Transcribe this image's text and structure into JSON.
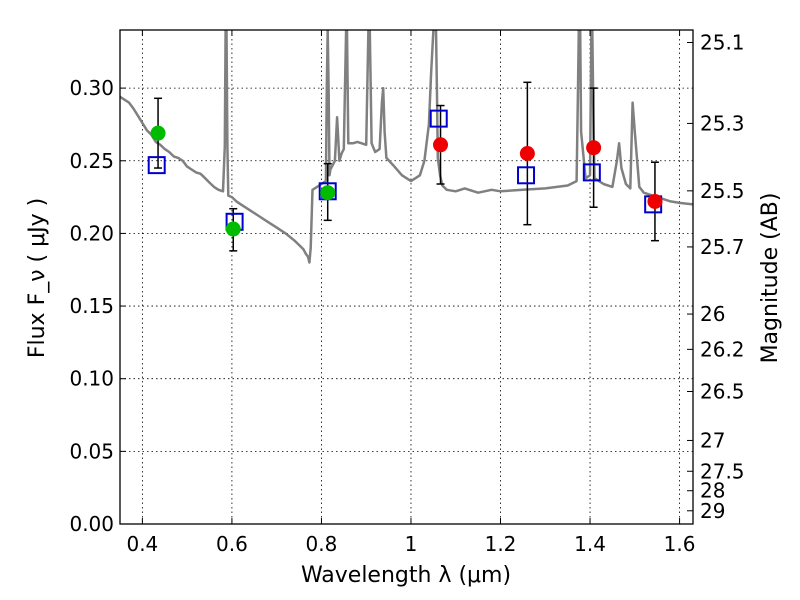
{
  "chart_data": {
    "type": "scatter",
    "xlabel": "Wavelength  λ (μm)",
    "ylabel": "Flux  F_ν  ( μJy )",
    "ylabel_right": "Magnitude (AB)",
    "xlim": [
      0.35,
      1.63
    ],
    "ylim": [
      0.0,
      0.34
    ],
    "grid": true,
    "x_ticks": [
      0.4,
      0.6,
      0.8,
      1.0,
      1.2,
      1.4,
      1.6
    ],
    "x_tick_labels": [
      "0.4",
      "0.6",
      "0.8",
      "1",
      "1.2",
      "1.4",
      "1.6"
    ],
    "y_ticks": [
      0.0,
      0.05,
      0.1,
      0.15,
      0.2,
      0.25,
      0.3
    ],
    "y_tick_labels": [
      "0.00",
      "0.05",
      "0.10",
      "0.15",
      "0.20",
      "0.25",
      "0.30"
    ],
    "right_ticks": [
      {
        "label": "25.1",
        "flux": 0.3314
      },
      {
        "label": "25.3",
        "flux": 0.2757
      },
      {
        "label": "25.5",
        "flux": 0.2293
      },
      {
        "label": "25.7",
        "flux": 0.1907
      },
      {
        "label": "26",
        "flux": 0.1445
      },
      {
        "label": "26.2",
        "flux": 0.1202
      },
      {
        "label": "26.5",
        "flux": 0.0912
      },
      {
        "label": "27",
        "flux": 0.0575
      },
      {
        "label": "27.5",
        "flux": 0.0363
      },
      {
        "label": "28",
        "flux": 0.0229
      },
      {
        "label": "29",
        "flux": 0.0091
      }
    ],
    "series": [
      {
        "kind": "template_spectrum",
        "color": "#808080",
        "x": [
          0.35,
          0.36,
          0.37,
          0.38,
          0.39,
          0.4,
          0.41,
          0.42,
          0.43,
          0.44,
          0.45,
          0.46,
          0.47,
          0.48,
          0.49,
          0.5,
          0.51,
          0.52,
          0.53,
          0.54,
          0.55,
          0.56,
          0.57,
          0.58,
          0.584,
          0.586,
          0.588,
          0.59,
          0.592,
          0.6,
          0.61,
          0.62,
          0.64,
          0.66,
          0.68,
          0.7,
          0.72,
          0.74,
          0.75,
          0.76,
          0.765,
          0.77,
          0.773,
          0.776,
          0.78,
          0.79,
          0.8,
          0.81,
          0.812,
          0.814,
          0.816,
          0.818,
          0.82,
          0.83,
          0.835,
          0.84,
          0.845,
          0.85,
          0.855,
          0.857,
          0.86,
          0.87,
          0.88,
          0.89,
          0.9,
          0.905,
          0.908,
          0.912,
          0.92,
          0.93,
          0.935,
          0.938,
          0.941,
          0.945,
          0.96,
          0.98,
          1.0,
          1.02,
          1.03,
          1.04,
          1.045,
          1.05,
          1.052,
          1.054,
          1.056,
          1.058,
          1.06,
          1.065,
          1.07,
          1.08,
          1.1,
          1.12,
          1.15,
          1.18,
          1.2,
          1.25,
          1.3,
          1.35,
          1.37,
          1.373,
          1.375,
          1.378,
          1.38,
          1.39,
          1.4,
          1.403,
          1.405,
          1.408,
          1.41,
          1.43,
          1.45,
          1.46,
          1.465,
          1.47,
          1.48,
          1.49,
          1.495,
          1.5,
          1.51,
          1.52,
          1.55,
          1.58,
          1.6,
          1.63
        ],
        "y": [
          0.294,
          0.292,
          0.29,
          0.286,
          0.281,
          0.276,
          0.271,
          0.268,
          0.263,
          0.261,
          0.258,
          0.256,
          0.253,
          0.252,
          0.25,
          0.246,
          0.244,
          0.242,
          0.241,
          0.238,
          0.235,
          0.232,
          0.23,
          0.229,
          0.26,
          0.34,
          0.34,
          0.26,
          0.226,
          0.225,
          0.222,
          0.22,
          0.216,
          0.212,
          0.208,
          0.204,
          0.2,
          0.195,
          0.192,
          0.189,
          0.186,
          0.184,
          0.18,
          0.19,
          0.23,
          0.232,
          0.234,
          0.236,
          0.3,
          0.34,
          0.3,
          0.24,
          0.244,
          0.25,
          0.28,
          0.25,
          0.255,
          0.258,
          0.34,
          0.34,
          0.262,
          0.262,
          0.263,
          0.262,
          0.261,
          0.34,
          0.34,
          0.262,
          0.256,
          0.258,
          0.29,
          0.3,
          0.27,
          0.252,
          0.247,
          0.24,
          0.236,
          0.24,
          0.25,
          0.275,
          0.31,
          0.34,
          0.34,
          0.34,
          0.34,
          0.3,
          0.252,
          0.24,
          0.233,
          0.23,
          0.229,
          0.231,
          0.228,
          0.23,
          0.229,
          0.23,
          0.231,
          0.233,
          0.236,
          0.3,
          0.34,
          0.34,
          0.27,
          0.238,
          0.24,
          0.34,
          0.34,
          0.27,
          0.238,
          0.234,
          0.232,
          0.25,
          0.262,
          0.245,
          0.234,
          0.231,
          0.29,
          0.27,
          0.232,
          0.228,
          0.225,
          0.222,
          0.221,
          0.22
        ]
      },
      {
        "kind": "model_fluxes",
        "marker": "open-square",
        "color": "#0000cc",
        "x": [
          0.432,
          0.606,
          0.814,
          1.062,
          1.257,
          1.404,
          1.541
        ],
        "y": [
          0.247,
          0.208,
          0.229,
          0.279,
          0.24,
          0.242,
          0.22
        ]
      },
      {
        "kind": "observed_optical",
        "marker": "filled-circle",
        "color": "#00bb00",
        "x": [
          0.435,
          0.603,
          0.814
        ],
        "y": [
          0.269,
          0.203,
          0.228
        ]
      },
      {
        "kind": "observed_nir",
        "marker": "filled-circle",
        "color": "#ee0000",
        "x": [
          1.066,
          1.26,
          1.408,
          1.545
        ],
        "y": [
          0.261,
          0.255,
          0.259,
          0.222
        ]
      },
      {
        "kind": "error_bars",
        "color": "#000000",
        "x": [
          0.435,
          0.603,
          0.814,
          1.066,
          1.26,
          1.408,
          1.545
        ],
        "ylow": [
          0.245,
          0.188,
          0.209,
          0.234,
          0.206,
          0.218,
          0.195
        ],
        "yhigh": [
          0.293,
          0.217,
          0.248,
          0.288,
          0.304,
          0.3,
          0.249
        ]
      }
    ]
  }
}
